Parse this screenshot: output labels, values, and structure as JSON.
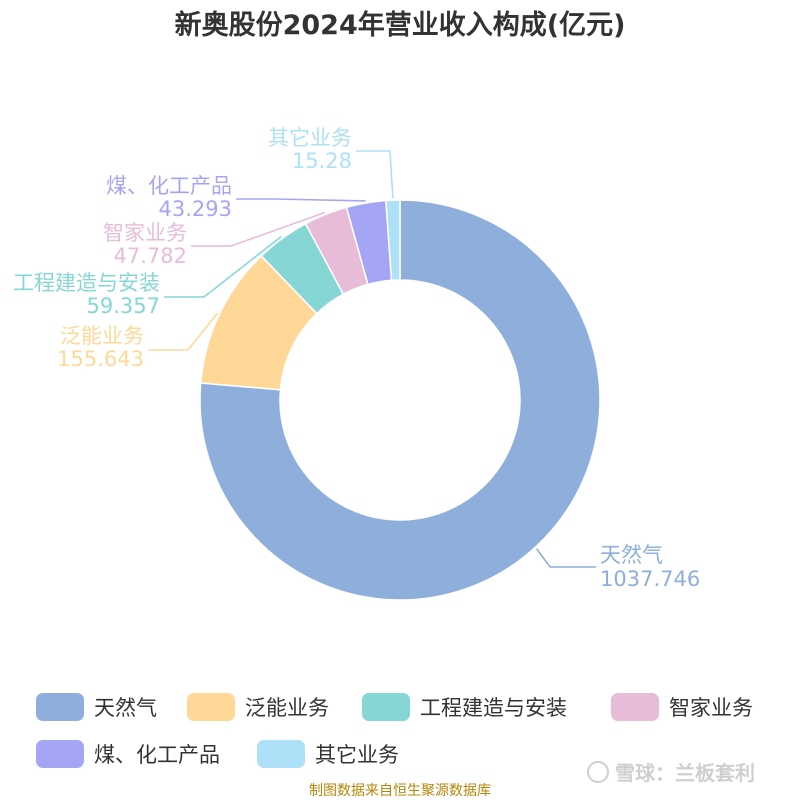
{
  "chart_data": {
    "type": "pie",
    "title": "新奥股份2024年营业收入构成(亿元)",
    "slices": [
      {
        "name": "天然气",
        "value": 1037.746,
        "label": "1037.746",
        "color": "#8eaedb"
      },
      {
        "name": "泛能业务",
        "value": 155.643,
        "label": "155.643",
        "color": "#ffd897"
      },
      {
        "name": "工程建造与安装",
        "value": 59.357,
        "label": "59.357",
        "color": "#86d6d6"
      },
      {
        "name": "智家业务",
        "value": 47.782,
        "label": "47.782",
        "color": "#e8bcd9"
      },
      {
        "name": "煤、化工产品",
        "value": 43.293,
        "label": "43.293",
        "color": "#a4a6f5"
      },
      {
        "name": "其它业务",
        "value": 15.28,
        "label": "15.28",
        "color": "#aee0f8"
      }
    ],
    "legend": "bottom"
  },
  "footer": {
    "source": "制图数据来自恒生聚源数据库",
    "watermark": "雪球：兰板套利"
  }
}
